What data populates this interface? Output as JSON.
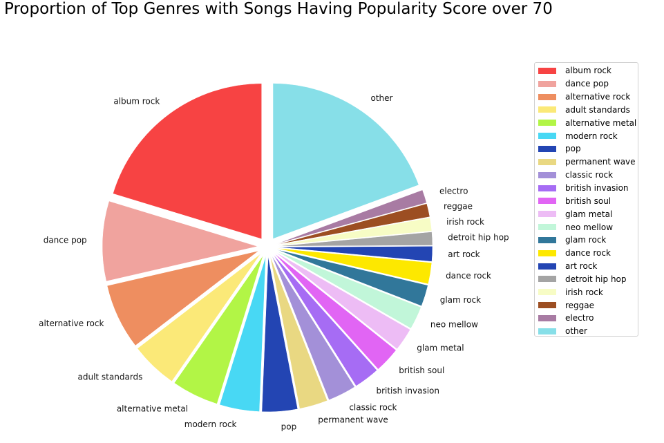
{
  "chart_data": {
    "type": "pie",
    "title": "Proportion of Top Genres with Songs Having Popularity Score over 70",
    "legend_position": "right",
    "start_angle_deg": 90,
    "direction": "counterclockwise",
    "slices": [
      {
        "label": "album rock",
        "value": 22.0,
        "color": "#f74343"
      },
      {
        "label": "dance pop",
        "value": 9.0,
        "color": "#f0a39e"
      },
      {
        "label": "alternative rock",
        "value": 7.4,
        "color": "#ee8e60"
      },
      {
        "label": "adult standards",
        "value": 5.3,
        "color": "#fbe978"
      },
      {
        "label": "alternative metal",
        "value": 5.3,
        "color": "#b2f546"
      },
      {
        "label": "modern rock",
        "value": 4.5,
        "color": "#48d8f4"
      },
      {
        "label": "pop",
        "value": 4.0,
        "color": "#2345b3"
      },
      {
        "label": "permanent wave",
        "value": 3.2,
        "color": "#e9d882"
      },
      {
        "label": "classic rock",
        "value": 3.2,
        "color": "#a390d8"
      },
      {
        "label": "british invasion",
        "value": 2.9,
        "color": "#a66cf4"
      },
      {
        "label": "british soul",
        "value": 2.9,
        "color": "#e165f4"
      },
      {
        "label": "glam metal",
        "value": 2.6,
        "color": "#edbcf5"
      },
      {
        "label": "neo mellow",
        "value": 2.6,
        "color": "#c1f6d9"
      },
      {
        "label": "glam rock",
        "value": 2.4,
        "color": "#31779a"
      },
      {
        "label": "dance rock",
        "value": 2.4,
        "color": "#fde800"
      },
      {
        "label": "art rock",
        "value": 1.7,
        "color": "#2345b3"
      },
      {
        "label": "detroit hip hop",
        "value": 1.5,
        "color": "#a4a4a4"
      },
      {
        "label": "irish rock",
        "value": 1.5,
        "color": "#f7fcc5"
      },
      {
        "label": "reggae",
        "value": 1.5,
        "color": "#9c4e22"
      },
      {
        "label": "electro",
        "value": 1.5,
        "color": "#a87ba3"
      },
      {
        "label": "other",
        "value": 21.0,
        "color": "#87dfe8"
      }
    ]
  }
}
